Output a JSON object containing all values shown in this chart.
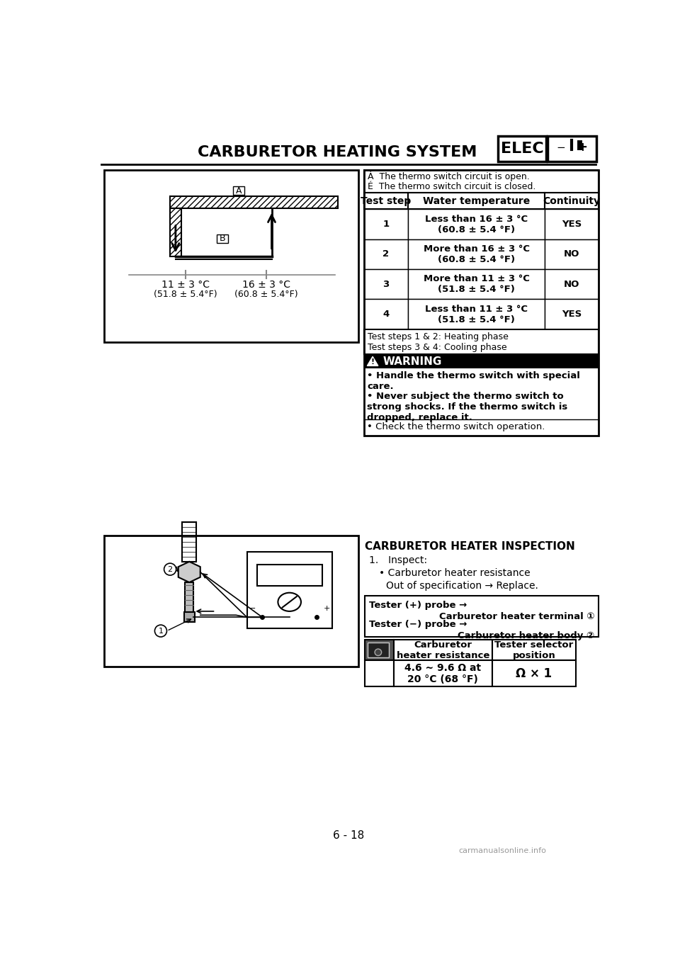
{
  "title": "CARBURETOR HEATING SYSTEM",
  "elec_label": "ELEC",
  "page_number": "6 - 18",
  "bg_color": "#ffffff",
  "note_a": "À  The thermo switch circuit is open.",
  "note_b": "É  The thermo switch circuit is closed.",
  "table_header": [
    "Test step",
    "Water temperature",
    "Continuity"
  ],
  "table_rows": [
    [
      "1",
      "Less than 16 ± 3 °C\n(60.8 ± 5.4 °F)",
      "YES"
    ],
    [
      "2",
      "More than 16 ± 3 °C\n(60.8 ± 5.4 °F)",
      "NO"
    ],
    [
      "3",
      "More than 11 ± 3 °C\n(51.8 ± 5.4 °F)",
      "NO"
    ],
    [
      "4",
      "Less than 11 ± 3 °C\n(51.8 ± 5.4 °F)",
      "YES"
    ]
  ],
  "phase_note": "Test steps 1 & 2: Heating phase\nTest steps 3 & 4: Cooling phase",
  "warning_text": "WARNING",
  "warning_bullet1": "Handle the thermo switch with special\ncare.",
  "warning_bullet2": "Never subject the thermo switch to\nstrong shocks. If the thermo switch is\ndropped, replace it.",
  "check_bullet": "Check the thermo switch operation.",
  "diagram_label_a": "A",
  "diagram_label_b": "B",
  "diagram_temp1": "11 ± 3 °C",
  "diagram_temp1_f": "(51.8 ± 5.4°F)",
  "diagram_temp2": "16 ± 3 °C",
  "diagram_temp2_f": "(60.8 ± 5.4°F)",
  "section2_title": "CARBURETOR HEATER INSPECTION",
  "inspect_step": "1. Inspect:",
  "inspect_bullet": "Carburetor heater resistance",
  "inspect_note": "Out of specification → Replace.",
  "tester_line1": "Tester (+) probe →",
  "tester_line2": "Carburetor heater terminal ①",
  "tester_line3": "Tester (−) probe →",
  "tester_line4": "Carburetor heater body ②",
  "spec_col1": "Carburetor\nheater resistance",
  "spec_col2": "Tester selector\nposition",
  "spec_val1": "4.6 ~ 9.6 Ω at\n20 °C (68 °F)",
  "spec_val2": "Ω × 1"
}
